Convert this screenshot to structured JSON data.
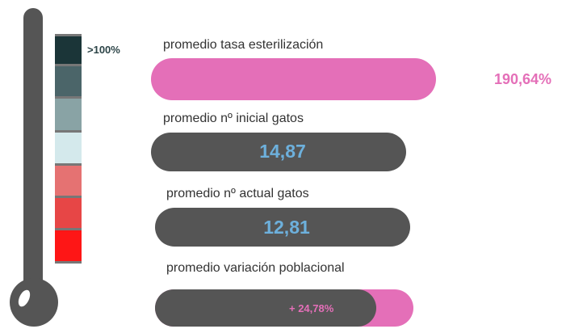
{
  "legend": {
    "label": ">100%"
  },
  "metrics": [
    {
      "label": "promedio tasa esterilización",
      "value": "190,64%"
    },
    {
      "label": "promedio nº inicial gatos",
      "value": "14,87"
    },
    {
      "label": "promedio nº actual gatos",
      "value": "12,81"
    },
    {
      "label": "promedio variación poblacional",
      "value": "+ 24,78%"
    }
  ]
}
